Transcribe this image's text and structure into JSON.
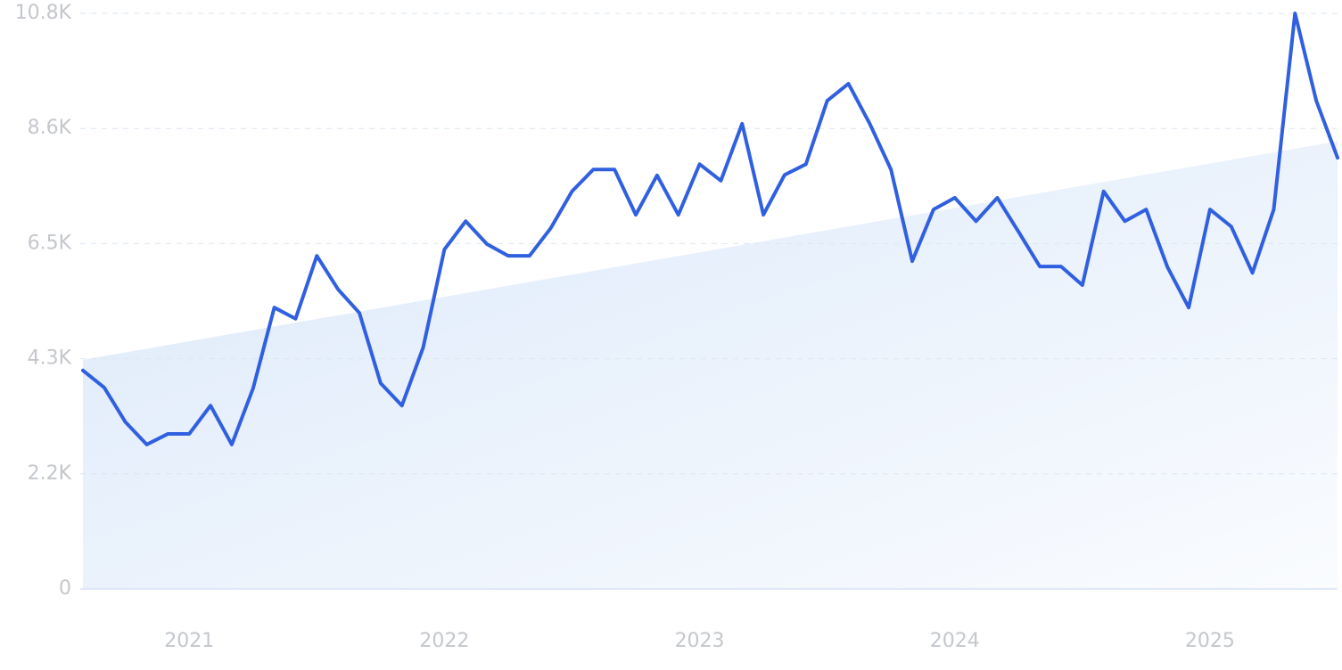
{
  "chart_data": {
    "type": "line",
    "categories": [
      null,
      null,
      null,
      null,
      null,
      "2021",
      null,
      null,
      null,
      null,
      null,
      null,
      null,
      null,
      null,
      null,
      null,
      "2022",
      null,
      null,
      null,
      null,
      null,
      null,
      null,
      null,
      null,
      null,
      null,
      "2023",
      null,
      null,
      null,
      null,
      null,
      null,
      null,
      null,
      null,
      null,
      null,
      "2024",
      null,
      null,
      null,
      null,
      null,
      null,
      null,
      null,
      null,
      null,
      null,
      "2025",
      null,
      null,
      null,
      null,
      null,
      null
    ],
    "series": [
      {
        "color": "#3060e0",
        "values": [
          4100,
          3780,
          3130,
          2710,
          2910,
          2910,
          3440,
          2710,
          3760,
          5280,
          5070,
          6250,
          5620,
          5180,
          3860,
          3440,
          4530,
          6370,
          6900,
          6470,
          6250,
          6250,
          6770,
          7460,
          7870,
          7870,
          7020,
          7760,
          7020,
          7970,
          7660,
          8730,
          7020,
          7770,
          7970,
          9160,
          9480,
          8730,
          7870,
          6150,
          7120,
          7340,
          6900,
          7340,
          6700,
          6050,
          6050,
          5700,
          7460,
          6900,
          7120,
          6040,
          5280,
          7120,
          6800,
          5930,
          7120,
          10800,
          9160,
          8090
        ]
      }
    ],
    "trend": {
      "color": "#dce9fa",
      "values": [
        4300,
        8400
      ]
    },
    "ylim": [
      0,
      10800
    ],
    "yticks": [
      0,
      {
        "value": 2160,
        "label": "2.2K"
      },
      {
        "value": 4320,
        "label": "4.3K"
      },
      {
        "value": 6480,
        "label": "6.5K"
      },
      {
        "value": 8640,
        "label": "8.6K"
      },
      {
        "value": 10800,
        "label": "10.8K"
      }
    ],
    "grid": true
  }
}
